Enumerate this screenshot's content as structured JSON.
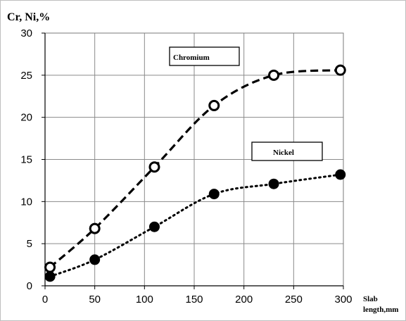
{
  "chart_data": {
    "type": "line",
    "title": "",
    "ylabel": "Cr, Ni,%",
    "xlabel_lines": [
      "Slab",
      "length,mm"
    ],
    "xlim": [
      0,
      300
    ],
    "ylim": [
      0,
      30
    ],
    "x_ticks": [
      "0",
      "50",
      "100",
      "150",
      "200",
      "250",
      "300"
    ],
    "y_ticks": [
      "0",
      "5",
      "10",
      "15",
      "20",
      "25",
      "30"
    ],
    "grid": true,
    "series": [
      {
        "name": "Chromium",
        "line_style": "dashed",
        "marker": "open-circle",
        "color": "#000000",
        "x": [
          5,
          50,
          110,
          170,
          230,
          297
        ],
        "y": [
          2.2,
          6.8,
          14.1,
          21.4,
          25.0,
          25.6
        ]
      },
      {
        "name": "Nickel",
        "line_style": "dotted",
        "marker": "filled-circle",
        "color": "#000000",
        "x": [
          5,
          50,
          110,
          170,
          230,
          297
        ],
        "y": [
          1.1,
          3.1,
          7.0,
          10.9,
          12.1,
          13.2
        ]
      }
    ]
  }
}
